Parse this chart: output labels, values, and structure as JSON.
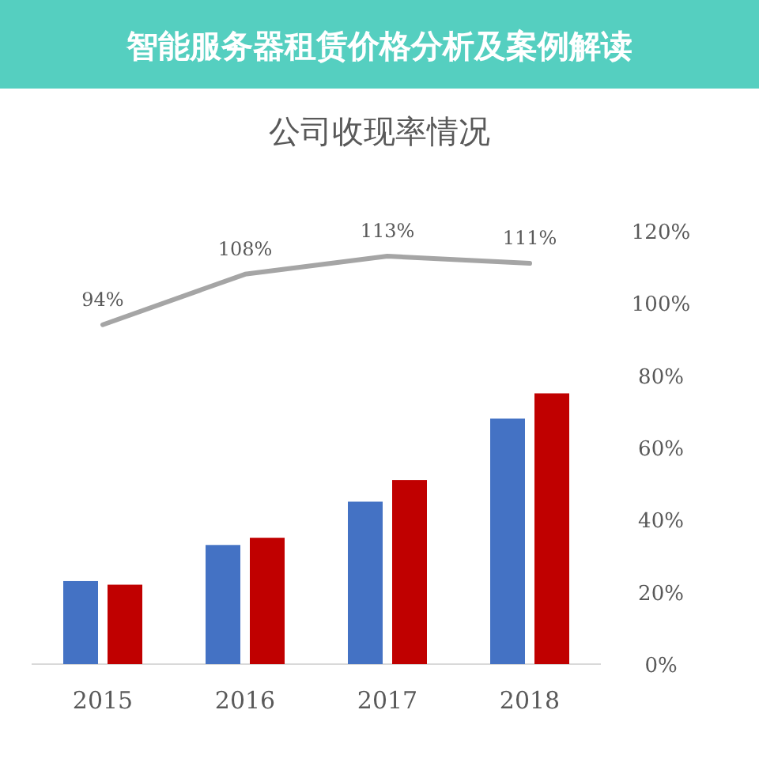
{
  "chart_data": {
    "type": "bar",
    "title": "公司收现率情况",
    "annotations": [
      "智能服务器租赁价格分析及案例解读"
    ],
    "categories": [
      "2015",
      "2016",
      "2017",
      "2018"
    ],
    "series": [
      {
        "color": "#4472c4",
        "values": [
          23,
          33,
          45,
          68
        ]
      },
      {
        "color": "#c00000",
        "values": [
          22,
          35,
          51,
          75
        ]
      },
      {
        "type": "line",
        "color": "#a5a5a5",
        "values": [
          94,
          108,
          113,
          111
        ],
        "value_labels": [
          "94%",
          "108%",
          "113%",
          "111%"
        ]
      }
    ],
    "ylim": [
      0,
      120
    ],
    "yticks": [
      {
        "value": 0,
        "label": "0%"
      },
      {
        "value": 20,
        "label": "20%"
      },
      {
        "value": 40,
        "label": "40%"
      },
      {
        "value": 60,
        "label": "60%"
      },
      {
        "value": 80,
        "label": "80%"
      },
      {
        "value": 100,
        "label": "100%"
      },
      {
        "value": 120,
        "label": "120%"
      }
    ],
    "grid": false
  }
}
